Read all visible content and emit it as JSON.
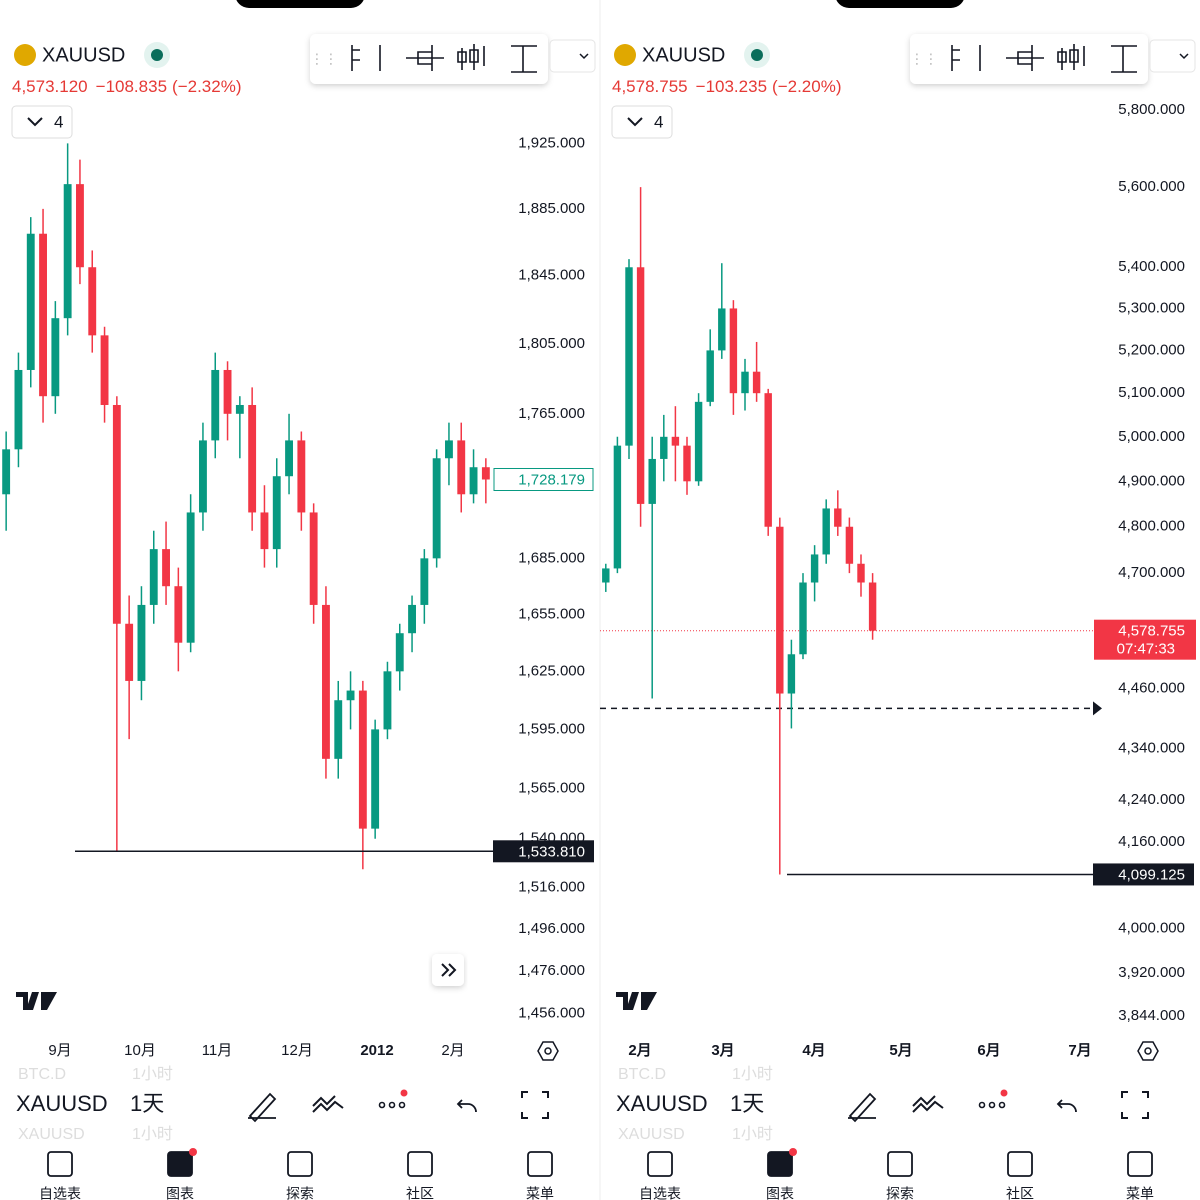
{
  "panels": [
    {
      "symbol": "XAUUSD",
      "quote": "4,573.120",
      "change": "−108.835",
      "change_pct": "(−2.32%)",
      "interval": "4",
      "chart": {
        "type": "candlestick",
        "scale": "log",
        "ylim": [
          1446,
          1952
        ],
        "colors": {
          "up": "#089981",
          "down": "#f23645"
        },
        "yticks": [
          {
            "value": 1925,
            "label": "1,925.000"
          },
          {
            "value": 1885,
            "label": "1,885.000"
          },
          {
            "value": 1845,
            "label": "1,845.000"
          },
          {
            "value": 1805,
            "label": "1,805.000"
          },
          {
            "value": 1765,
            "label": "1,765.000"
          },
          {
            "value": 1685,
            "label": "1,685.000"
          },
          {
            "value": 1655,
            "label": "1,655.000"
          },
          {
            "value": 1625,
            "label": "1,625.000"
          },
          {
            "value": 1595,
            "label": "1,595.000"
          },
          {
            "value": 1565,
            "label": "1,565.000"
          },
          {
            "value": 1540,
            "label": "1,540.000"
          },
          {
            "value": 1516,
            "label": "1,516.000"
          },
          {
            "value": 1496,
            "label": "1,496.000"
          },
          {
            "value": 1476,
            "label": "1,476.000"
          },
          {
            "value": 1456,
            "label": "1,456.000"
          }
        ],
        "xticks": [
          "9月",
          "10月",
          "11月",
          "12月",
          "2012",
          "2月"
        ],
        "candles": [
          [
            1720,
            1755,
            1700,
            1745
          ],
          [
            1745,
            1800,
            1735,
            1790
          ],
          [
            1790,
            1880,
            1780,
            1870
          ],
          [
            1870,
            1885,
            1760,
            1775
          ],
          [
            1775,
            1830,
            1765,
            1820
          ],
          [
            1820,
            1925,
            1810,
            1900
          ],
          [
            1900,
            1915,
            1840,
            1850
          ],
          [
            1850,
            1860,
            1800,
            1810
          ],
          [
            1810,
            1815,
            1760,
            1770
          ],
          [
            1770,
            1775,
            1534,
            1650
          ],
          [
            1650,
            1665,
            1590,
            1620
          ],
          [
            1620,
            1670,
            1610,
            1660
          ],
          [
            1660,
            1700,
            1650,
            1690
          ],
          [
            1690,
            1705,
            1660,
            1670
          ],
          [
            1670,
            1680,
            1625,
            1640
          ],
          [
            1640,
            1720,
            1635,
            1710
          ],
          [
            1710,
            1760,
            1700,
            1750
          ],
          [
            1750,
            1800,
            1740,
            1790
          ],
          [
            1790,
            1795,
            1750,
            1765
          ],
          [
            1765,
            1775,
            1740,
            1770
          ],
          [
            1770,
            1780,
            1700,
            1710
          ],
          [
            1710,
            1725,
            1680,
            1690
          ],
          [
            1690,
            1740,
            1680,
            1730
          ],
          [
            1730,
            1765,
            1720,
            1750
          ],
          [
            1750,
            1755,
            1700,
            1710
          ],
          [
            1710,
            1715,
            1650,
            1660
          ],
          [
            1660,
            1670,
            1570,
            1580
          ],
          [
            1580,
            1620,
            1570,
            1610
          ],
          [
            1610,
            1625,
            1595,
            1615
          ],
          [
            1615,
            1620,
            1525,
            1545
          ],
          [
            1545,
            1600,
            1540,
            1595
          ],
          [
            1595,
            1630,
            1590,
            1625
          ],
          [
            1625,
            1650,
            1615,
            1645
          ],
          [
            1645,
            1665,
            1635,
            1660
          ],
          [
            1660,
            1690,
            1650,
            1685
          ],
          [
            1685,
            1745,
            1680,
            1740
          ],
          [
            1740,
            1760,
            1725,
            1750
          ],
          [
            1750,
            1760,
            1710,
            1720
          ],
          [
            1720,
            1745,
            1715,
            1735
          ],
          [
            1735,
            1740,
            1715,
            1728.179
          ]
        ],
        "last_price": {
          "value": 1728.179,
          "label": "1,728.179"
        },
        "horizontal_line": {
          "value": 1533.81,
          "label": "1,533.810"
        }
      }
    },
    {
      "symbol": "XAUUSD",
      "quote": "4,578.755",
      "change": "−103.235",
      "change_pct": "(−2.20%)",
      "interval": "4",
      "chart": {
        "type": "candlestick",
        "scale": "log",
        "ylim": [
          3811,
          5826
        ],
        "colors": {
          "up": "#089981",
          "down": "#f23645"
        },
        "yticks": [
          {
            "value": 5800,
            "label": "5,800.000"
          },
          {
            "value": 5600,
            "label": "5,600.000"
          },
          {
            "value": 5400,
            "label": "5,400.000"
          },
          {
            "value": 5300,
            "label": "5,300.000"
          },
          {
            "value": 5200,
            "label": "5,200.000"
          },
          {
            "value": 5100,
            "label": "5,100.000"
          },
          {
            "value": 5000,
            "label": "5,000.000"
          },
          {
            "value": 4900,
            "label": "4,900.000"
          },
          {
            "value": 4800,
            "label": "4,800.000"
          },
          {
            "value": 4700,
            "label": "4,700.000"
          },
          {
            "value": 4460,
            "label": "4,460.000"
          },
          {
            "value": 4340,
            "label": "4,340.000"
          },
          {
            "value": 4240,
            "label": "4,240.000"
          },
          {
            "value": 4160,
            "label": "4,160.000"
          },
          {
            "value": 4000,
            "label": "4,000.000"
          },
          {
            "value": 3920,
            "label": "3,920.000"
          },
          {
            "value": 3844,
            "label": "3,844.000"
          }
        ],
        "xticks": [
          "2月",
          "3月",
          "4月",
          "5月",
          "6月",
          "7月"
        ],
        "candles": [
          [
            4680,
            4720,
            4660,
            4710
          ],
          [
            4710,
            5000,
            4700,
            4980
          ],
          [
            4980,
            5420,
            4950,
            5400
          ],
          [
            5400,
            5600,
            4800,
            4850
          ],
          [
            4850,
            5000,
            4440,
            4950
          ],
          [
            4950,
            5050,
            4900,
            5000
          ],
          [
            5000,
            5070,
            4900,
            4980
          ],
          [
            4980,
            5000,
            4870,
            4900
          ],
          [
            4900,
            5100,
            4890,
            5080
          ],
          [
            5080,
            5250,
            5070,
            5200
          ],
          [
            5200,
            5410,
            5180,
            5300
          ],
          [
            5300,
            5320,
            5050,
            5100
          ],
          [
            5100,
            5180,
            5060,
            5150
          ],
          [
            5150,
            5220,
            5080,
            5100
          ],
          [
            5100,
            5110,
            4780,
            4800
          ],
          [
            4800,
            4820,
            4099.125,
            4450
          ],
          [
            4450,
            4560,
            4380,
            4530
          ],
          [
            4530,
            4700,
            4520,
            4680
          ],
          [
            4680,
            4760,
            4640,
            4740
          ],
          [
            4740,
            4860,
            4720,
            4840
          ],
          [
            4840,
            4880,
            4780,
            4800
          ],
          [
            4800,
            4820,
            4700,
            4720
          ],
          [
            4720,
            4740,
            4650,
            4680
          ],
          [
            4680,
            4700,
            4560,
            4578.755
          ]
        ],
        "last_price": {
          "value": 4578.755,
          "label": "4,578.755",
          "countdown": "07:47:33"
        },
        "dashed_line": 4420,
        "horizontal_line": {
          "value": 4099.125,
          "label": "4,099.125"
        }
      }
    }
  ],
  "toolbar": {
    "symbol": "XAUUSD",
    "interval": "1天",
    "ghost_rows": [
      [
        "BTC.D",
        "1小时"
      ],
      [
        "XAUUSD",
        "1小时"
      ]
    ]
  },
  "tabs": [
    "自选表",
    "图表",
    "探索",
    "社区",
    "菜单"
  ]
}
